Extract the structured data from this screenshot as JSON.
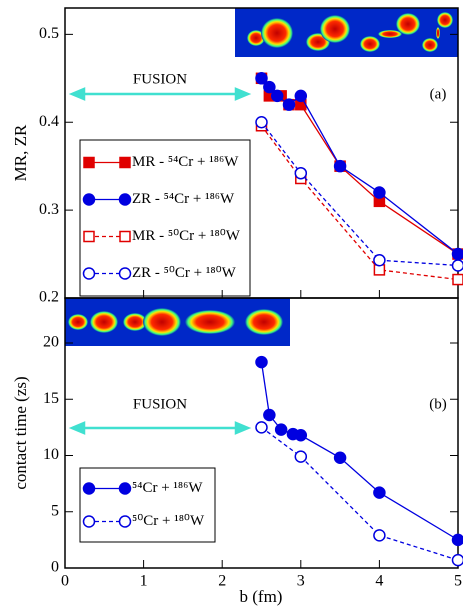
{
  "chart_data": [
    {
      "type": "line",
      "ylabel": "MR, ZR",
      "panel_label": "(a)",
      "annotation": "FUSION",
      "xlim": [
        0,
        5
      ],
      "ylim": [
        0.2,
        0.53
      ],
      "yticks": [
        0.2,
        0.3,
        0.4,
        0.5
      ],
      "legend": "center left",
      "series": [
        {
          "name": "MR - ⁵⁴Cr + ¹⁸⁶W",
          "color": "#e00000",
          "marker": "square",
          "filled": true,
          "dashed": false,
          "x": [
            2.5,
            2.6,
            2.75,
            2.85,
            3.0,
            3.5,
            4.0,
            5.0
          ],
          "values": [
            0.45,
            0.43,
            0.43,
            0.42,
            0.42,
            0.35,
            0.31,
            0.25
          ]
        },
        {
          "name": "ZR - ⁵⁴Cr + ¹⁸⁶W",
          "color": "#0000e0",
          "marker": "circle",
          "filled": true,
          "dashed": false,
          "x": [
            2.5,
            2.6,
            2.7,
            2.85,
            3.0,
            3.5,
            4.0,
            5.0
          ],
          "values": [
            0.45,
            0.44,
            0.43,
            0.42,
            0.43,
            0.35,
            0.32,
            0.25
          ]
        },
        {
          "name": "MR - ⁵⁰Cr + ¹⁸⁰W",
          "color": "#e00000",
          "marker": "square",
          "filled": false,
          "dashed": true,
          "x": [
            2.5,
            3.0,
            4.0,
            5.0
          ],
          "values": [
            0.396,
            0.336,
            0.232,
            0.221
          ]
        },
        {
          "name": "ZR - ⁵⁰Cr + ¹⁸⁰W",
          "color": "#0000e0",
          "marker": "circle",
          "filled": false,
          "dashed": true,
          "x": [
            2.5,
            3.0,
            4.0,
            5.0
          ],
          "values": [
            0.4,
            0.342,
            0.243,
            0.237
          ]
        }
      ]
    },
    {
      "type": "line",
      "ylabel": "contact time (zs)",
      "xlabel": "b (fm)",
      "panel_label": "(b)",
      "annotation": "FUSION",
      "xlim": [
        0,
        5
      ],
      "xticks": [
        0,
        1,
        2,
        3,
        4,
        5
      ],
      "ylim": [
        0,
        24
      ],
      "yticks": [
        0,
        5,
        10,
        15,
        20
      ],
      "legend": "lower left",
      "series": [
        {
          "name": "⁵⁴Cr + ¹⁸⁶W",
          "color": "#0000e0",
          "marker": "circle",
          "filled": true,
          "dashed": false,
          "x": [
            2.5,
            2.6,
            2.75,
            2.9,
            3.0,
            3.5,
            4.0,
            5.0
          ],
          "values": [
            18.3,
            13.6,
            12.3,
            11.9,
            11.8,
            9.8,
            6.7,
            2.5
          ]
        },
        {
          "name": "⁵⁰Cr + ¹⁸⁰W",
          "color": "#0000e0",
          "marker": "circle",
          "filled": false,
          "dashed": true,
          "x": [
            2.5,
            3.0,
            4.0,
            5.0
          ],
          "values": [
            12.5,
            9.9,
            2.9,
            0.7
          ]
        }
      ]
    }
  ]
}
